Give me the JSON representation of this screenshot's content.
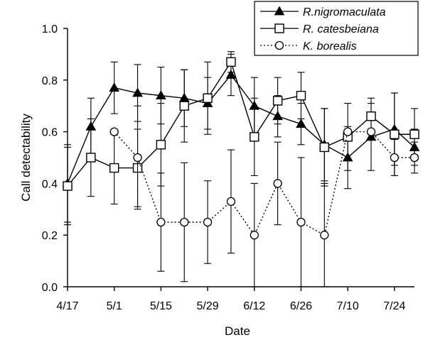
{
  "chart_data": {
    "type": "line",
    "title": "",
    "xlabel": "Date",
    "ylabel": "Call detectability",
    "x_tick_labels": [
      "4/17",
      "5/1",
      "5/15",
      "5/29",
      "6/12",
      "6/26",
      "7/10",
      "7/24"
    ],
    "x_tick_days": [
      0,
      14,
      28,
      42,
      56,
      70,
      84,
      98
    ],
    "xlim": [
      0,
      104
    ],
    "ylim": [
      0,
      1.0
    ],
    "y_ticks": [
      0.0,
      0.2,
      0.4,
      0.6,
      0.8,
      1.0
    ],
    "y_tick_labels": [
      "0.0",
      "0.2",
      "0.4",
      "0.6",
      "0.8",
      "1.0"
    ],
    "grid": false,
    "legend_position": "top-right",
    "series": [
      {
        "name": "R.nigromaculata",
        "marker": "triangle-filled",
        "line_style": "solid",
        "color": "#000000",
        "x": [
          0,
          7,
          14,
          21,
          28,
          35,
          42,
          49,
          56,
          63,
          70,
          77,
          84,
          91,
          98,
          104
        ],
        "y": [
          0.4,
          0.62,
          0.77,
          0.75,
          0.74,
          0.73,
          0.71,
          0.82,
          0.7,
          0.66,
          0.63,
          0.55,
          0.5,
          0.58,
          0.61,
          0.54
        ],
        "err": [
          0.15,
          0.11,
          0.1,
          0.11,
          0.11,
          0.11,
          0.1,
          0.08,
          0.11,
          0.08,
          0.08,
          0.14,
          0.12,
          0.13,
          0.14,
          0.07
        ]
      },
      {
        "name": "R. catesbeiana",
        "marker": "square-open",
        "line_style": "solid",
        "color": "#000000",
        "x": [
          0,
          7,
          14,
          21,
          28,
          35,
          42,
          49,
          56,
          63,
          70,
          77,
          84,
          91,
          98,
          104
        ],
        "y": [
          0.39,
          0.5,
          0.46,
          0.46,
          0.55,
          0.7,
          0.73,
          0.87,
          0.58,
          0.72,
          0.74,
          0.54,
          0.58,
          0.66,
          0.59,
          0.59
        ],
        "err": [
          0.15,
          0.15,
          0.14,
          0.15,
          0.16,
          0.14,
          0.14,
          0.04,
          0.15,
          0.09,
          0.09,
          0.15,
          0.13,
          0.07,
          0.16,
          0.1
        ]
      },
      {
        "name": "K. borealis",
        "marker": "circle-open",
        "line_style": "dotted",
        "color": "#000000",
        "x": [
          14,
          21,
          28,
          35,
          42,
          49,
          56,
          63,
          70,
          77,
          84,
          91,
          98,
          104
        ],
        "y": [
          0.6,
          0.5,
          0.25,
          0.25,
          0.25,
          0.33,
          0.2,
          0.4,
          0.25,
          0.2,
          0.6,
          0.6,
          0.5,
          0.5
        ],
        "err": [
          0.0,
          0.2,
          0.19,
          0.23,
          0.16,
          0.2,
          0.2,
          0.16,
          0.25,
          0.2,
          0.0,
          0.0,
          0.07,
          0.06
        ]
      }
    ]
  }
}
